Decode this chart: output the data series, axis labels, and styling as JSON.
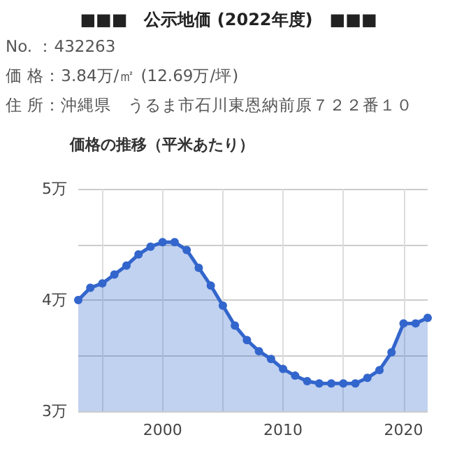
{
  "chart_data": {
    "type": "area",
    "title": "■■■　公示地価 (2022年度)　■■■",
    "subtitle": "価格の推移（平米あたり）",
    "annotations": [
      "No. ：432263",
      "価 格：3.84万/㎡ (12.69万/坪)",
      "住 所：沖縄県　うるま市石川東恩納前原７２２番１０"
    ],
    "x": [
      1993,
      1994,
      1995,
      1996,
      1997,
      1998,
      1999,
      2000,
      2001,
      2002,
      2003,
      2004,
      2005,
      2006,
      2007,
      2008,
      2009,
      2010,
      2011,
      2012,
      2013,
      2014,
      2015,
      2016,
      2017,
      2018,
      2019,
      2020,
      2021,
      2022
    ],
    "series": [
      {
        "color": "#3366cc",
        "values": [
          4.0,
          4.11,
          4.15,
          4.23,
          4.31,
          4.41,
          4.48,
          4.52,
          4.52,
          4.45,
          4.29,
          4.13,
          3.95,
          3.77,
          3.64,
          3.54,
          3.47,
          3.38,
          3.32,
          3.27,
          3.25,
          3.25,
          3.25,
          3.25,
          3.3,
          3.37,
          3.53,
          3.79,
          3.79,
          3.84
        ]
      }
    ],
    "xlim": [
      1993,
      2022
    ],
    "xticks": [
      {
        "value": 1995,
        "label": null
      },
      2000,
      {
        "value": 2005,
        "label": null
      },
      2010,
      {
        "value": 2015,
        "label": null
      },
      2020
    ],
    "ylim": [
      3,
      5
    ],
    "yticks": [
      {
        "value": 3,
        "label": "3万"
      },
      {
        "value": 3.5,
        "label": null
      },
      {
        "value": 4,
        "label": "4万"
      },
      {
        "value": 4.5,
        "label": null
      },
      {
        "value": 5,
        "label": "5万"
      }
    ],
    "grid": true,
    "marker": "circle",
    "line_style": "solid"
  }
}
